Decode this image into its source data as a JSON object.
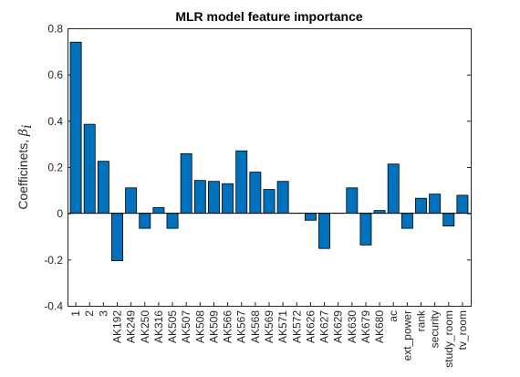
{
  "chart_data": {
    "type": "bar",
    "title": "MLR model feature importance",
    "ylabel": "Coefficinets, ",
    "ylabel_symbol": "β",
    "ylabel_subscript": "i",
    "xlabel": "",
    "ylim": [
      -0.4,
      0.8
    ],
    "yticks": [
      -0.4,
      -0.2,
      0,
      0.2,
      0.4,
      0.6,
      0.8
    ],
    "ytick_labels": [
      "-0.4",
      "-0.2",
      "0",
      "0.2",
      "0.4",
      "0.6",
      "0.8"
    ],
    "categories": [
      "1",
      "2",
      "3",
      "AK192",
      "AK249",
      "AK250",
      "AK316",
      "AK505",
      "AK507",
      "AK508",
      "AK509",
      "AK566",
      "AK567",
      "AK568",
      "AK569",
      "AK571",
      "AK572",
      "AK626",
      "AK627",
      "AK629",
      "AK630",
      "AK679",
      "AK680",
      "ac",
      "ext_power",
      "rank",
      "security",
      "study_room",
      "tv_room"
    ],
    "values": [
      0.74,
      0.385,
      0.225,
      -0.205,
      0.11,
      -0.065,
      0.025,
      -0.065,
      0.258,
      0.142,
      0.138,
      0.128,
      0.27,
      0.178,
      0.103,
      0.138,
      0.0,
      -0.03,
      -0.152,
      0.0,
      0.11,
      -0.137,
      0.012,
      0.213,
      -0.065,
      0.065,
      0.083,
      -0.055,
      0.078
    ],
    "bar_color": "#0072BD",
    "grid": false
  }
}
